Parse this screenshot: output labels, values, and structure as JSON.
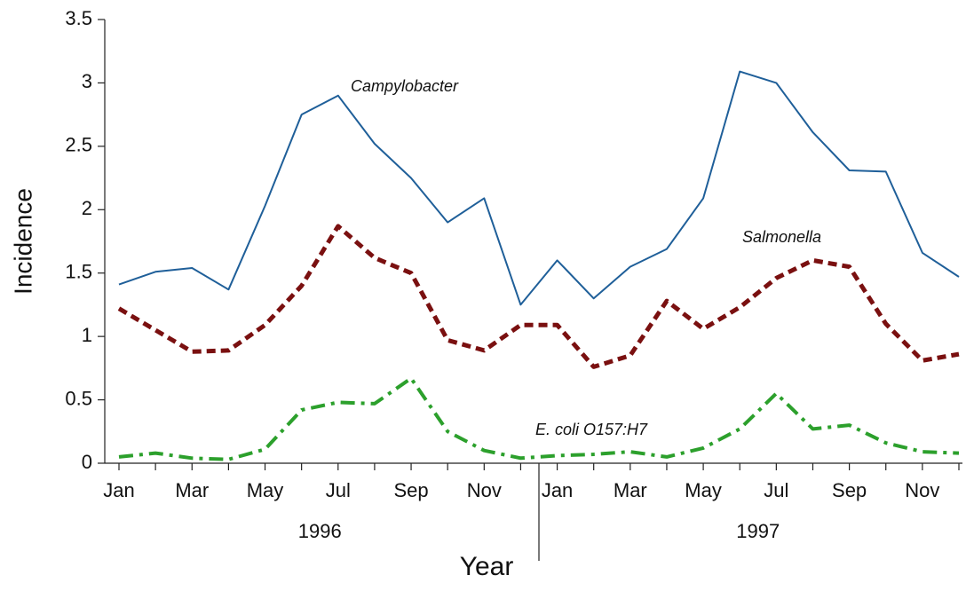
{
  "chart_data": {
    "type": "line",
    "xlabel": "Year",
    "ylabel": "Incidence",
    "categories": [
      "Jan",
      null,
      "Mar",
      null,
      "May",
      null,
      "Jul",
      null,
      "Sep",
      null,
      "Nov",
      null,
      "Jan",
      null,
      "Mar",
      null,
      "May",
      null,
      "Jul",
      null,
      "Sep",
      null,
      "Nov",
      null
    ],
    "year_labels": [
      "1996",
      "1997"
    ],
    "series": [
      {
        "name": "Campylobacter",
        "color": "#1f5f99",
        "style": "solid",
        "values": [
          1.41,
          1.51,
          1.54,
          1.37,
          2.03,
          2.75,
          2.9,
          2.52,
          2.25,
          1.9,
          2.09,
          1.25,
          1.6,
          1.3,
          1.55,
          1.69,
          2.09,
          3.09,
          3.0,
          2.61,
          2.31,
          2.3,
          1.66,
          1.47
        ]
      },
      {
        "name": "Salmonella",
        "color": "#7a1010",
        "style": "dashed",
        "values": [
          1.22,
          1.05,
          0.88,
          0.89,
          1.09,
          1.4,
          1.87,
          1.62,
          1.5,
          0.97,
          0.89,
          1.09,
          1.09,
          0.76,
          0.85,
          1.28,
          1.06,
          1.23,
          1.46,
          1.6,
          1.55,
          1.1,
          0.81,
          0.86
        ]
      },
      {
        "name": "E. coli O157:H7",
        "color": "#2ca02c",
        "style": "dashdot",
        "values": [
          0.05,
          0.08,
          0.04,
          0.03,
          0.11,
          0.42,
          0.48,
          0.47,
          0.67,
          0.25,
          0.1,
          0.04,
          0.06,
          0.07,
          0.09,
          0.05,
          0.12,
          0.27,
          0.55,
          0.27,
          0.3,
          0.16,
          0.09,
          0.08
        ]
      }
    ],
    "ylim": [
      0,
      3.5
    ],
    "yticks": [
      0,
      0.5,
      1,
      1.5,
      2,
      2.5,
      3,
      3.5
    ],
    "grid": false
  }
}
